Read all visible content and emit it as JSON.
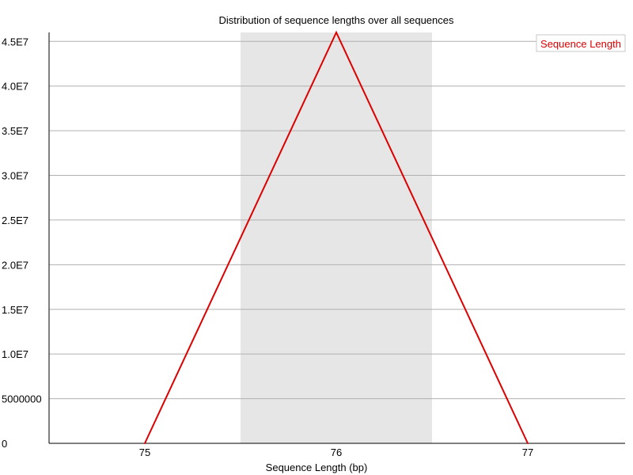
{
  "chart_data": {
    "type": "line",
    "title": "Distribution of sequence lengths over all sequences",
    "xlabel": "Sequence Length (bp)",
    "ylabel": "",
    "categories": [
      "75",
      "76",
      "77"
    ],
    "series": [
      {
        "name": "Sequence Length",
        "values": [
          0,
          46000000,
          0
        ],
        "color": "#dd0000"
      }
    ],
    "ylim": [
      0,
      46000000
    ],
    "y_ticks": [
      0,
      5000000,
      10000000,
      15000000,
      20000000,
      25000000,
      30000000,
      35000000,
      40000000,
      45000000
    ],
    "y_tick_labels": [
      "0",
      "5000000",
      "1.0E7",
      "1.5E7",
      "2.0E7",
      "2.5E7",
      "3.0E7",
      "3.5E7",
      "4.0E7",
      "4.5E7"
    ],
    "highlight_category": "76",
    "highlight_color": "#e6e6e6",
    "grid": "horizontal",
    "legend_position": "top-right",
    "axis_color": "#000000",
    "grid_color": "#b0b0b0"
  }
}
